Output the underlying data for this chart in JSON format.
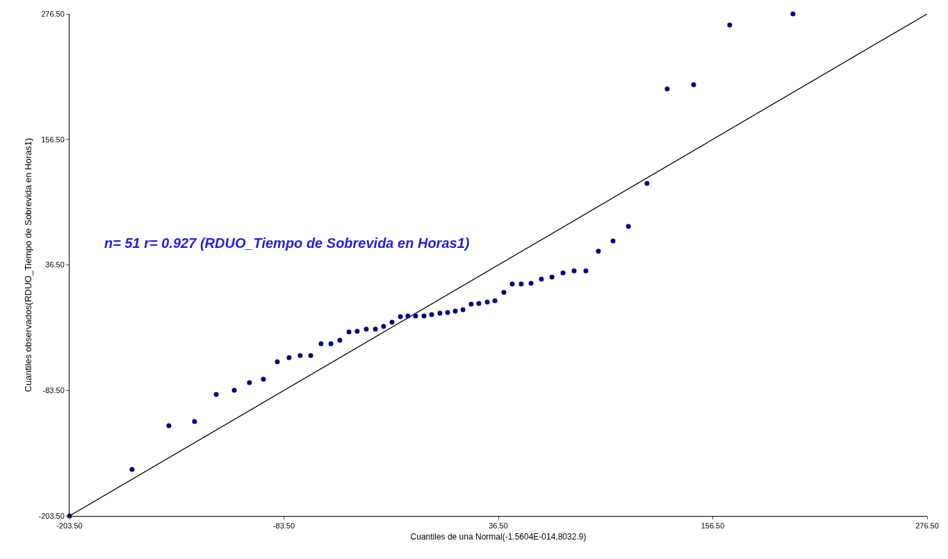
{
  "chart_data": {
    "type": "scatter",
    "title": "n= 51 r= 0.927 (RDUO_Tiempo de Sobrevida en Horas1)",
    "xlabel": "Cuantiles de una Normal(-1.5604E-014,8032.9)",
    "ylabel": "Cuantiles observados(RDUO_Tiempo de Sobrevida en Horas1)",
    "xlim": [
      -203.5,
      276.5
    ],
    "ylim": [
      -203.5,
      276.5
    ],
    "xticks": [
      {
        "value": -203.5,
        "label": "-203.50"
      },
      {
        "value": -83.5,
        "label": "-83.50"
      },
      {
        "value": 36.5,
        "label": "36.50"
      },
      {
        "value": 156.5,
        "label": "156.50"
      },
      {
        "value": 276.5,
        "label": "276.50"
      }
    ],
    "yticks": [
      {
        "value": -203.5,
        "label": "-203.50"
      },
      {
        "value": -83.5,
        "label": "-83.50"
      },
      {
        "value": 36.5,
        "label": "36.50"
      },
      {
        "value": 156.5,
        "label": "156.50"
      },
      {
        "value": 276.5,
        "label": "276.50"
      }
    ],
    "grid": false,
    "legend": false,
    "marker": "circle",
    "series": [
      {
        "color": "#000080",
        "x": [
          -203.5,
          -168.5,
          -147.9,
          -133.5,
          -121.4,
          -111.3,
          -102.8,
          -95.0,
          -87.2,
          -80.6,
          -74.4,
          -68.5,
          -62.7,
          -57.2,
          -52.2,
          -47.1,
          -42.5,
          -37.4,
          -32.3,
          -27.7,
          -23.0,
          -18.3,
          -14.1,
          -9.8,
          -5.1,
          -0.8,
          3.8,
          8.1,
          12.4,
          16.7,
          21.3,
          25.6,
          30.3,
          34.6,
          39.6,
          44.3,
          49.3,
          54.8,
          60.6,
          66.5,
          72.7,
          78.9,
          85.5,
          92.5,
          100.7,
          109.3,
          119.7,
          131.0,
          145.8,
          166.0,
          201.4
        ],
        "values": [
          -203.5,
          -159.0,
          -117.2,
          -113.2,
          -87.3,
          -83.3,
          -76.0,
          -72.7,
          -56.1,
          -52.1,
          -50.1,
          -50.1,
          -38.9,
          -38.9,
          -35.5,
          -27.6,
          -26.9,
          -24.9,
          -24.9,
          -22.3,
          -18.3,
          -13.0,
          -12.3,
          -12.3,
          -12.3,
          -11.0,
          -9.6,
          -9.0,
          -7.6,
          -6.3,
          -1.0,
          -0.3,
          1.0,
          2.3,
          10.3,
          18.2,
          18.2,
          18.9,
          22.9,
          24.9,
          28.9,
          30.9,
          30.9,
          49.6,
          59.4,
          73.3,
          114.5,
          204.8,
          208.8,
          265.9,
          276.5
        ]
      },
      {
        "type": "line",
        "color": "#000000",
        "line_style": "solid",
        "marker": "none",
        "x": [
          -203.5,
          276.5
        ],
        "values": [
          -203.5,
          276.5
        ]
      }
    ]
  }
}
